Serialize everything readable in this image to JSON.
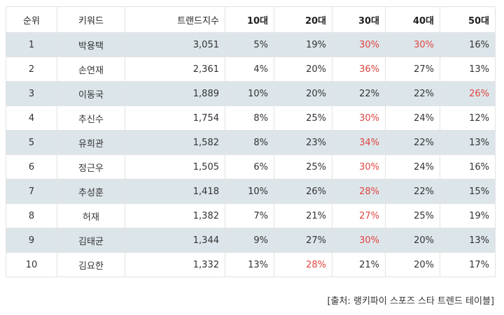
{
  "table": {
    "headers": [
      "순위",
      "키워드",
      "트랜드지수",
      "10대",
      "20대",
      "30대",
      "40대",
      "50대"
    ],
    "rows": [
      {
        "rank": "1",
        "keyword": "박용택",
        "index": "3,051",
        "a10": "5%",
        "a20": "19%",
        "a30": "30%",
        "a40": "30%",
        "a50": "16%"
      },
      {
        "rank": "2",
        "keyword": "손연재",
        "index": "2,361",
        "a10": "4%",
        "a20": "20%",
        "a30": "36%",
        "a40": "27%",
        "a50": "13%"
      },
      {
        "rank": "3",
        "keyword": "이동국",
        "index": "1,889",
        "a10": "10%",
        "a20": "20%",
        "a30": "22%",
        "a40": "22%",
        "a50": "26%"
      },
      {
        "rank": "4",
        "keyword": "추신수",
        "index": "1,754",
        "a10": "8%",
        "a20": "25%",
        "a30": "30%",
        "a40": "24%",
        "a50": "12%"
      },
      {
        "rank": "5",
        "keyword": "유희관",
        "index": "1,582",
        "a10": "8%",
        "a20": "23%",
        "a30": "34%",
        "a40": "22%",
        "a50": "13%"
      },
      {
        "rank": "6",
        "keyword": "정근우",
        "index": "1,505",
        "a10": "6%",
        "a20": "25%",
        "a30": "30%",
        "a40": "24%",
        "a50": "16%"
      },
      {
        "rank": "7",
        "keyword": "추성훈",
        "index": "1,418",
        "a10": "10%",
        "a20": "26%",
        "a30": "28%",
        "a40": "22%",
        "a50": "15%"
      },
      {
        "rank": "8",
        "keyword": "허재",
        "index": "1,382",
        "a10": "7%",
        "a20": "21%",
        "a30": "27%",
        "a40": "25%",
        "a50": "19%"
      },
      {
        "rank": "9",
        "keyword": "김태균",
        "index": "1,344",
        "a10": "9%",
        "a20": "27%",
        "a30": "30%",
        "a40": "20%",
        "a50": "13%"
      },
      {
        "rank": "10",
        "keyword": "김요한",
        "index": "1,332",
        "a10": "13%",
        "a20": "28%",
        "a30": "21%",
        "a40": "20%",
        "a50": "17%"
      }
    ]
  },
  "highlight_cells": [
    {
      "row": 0,
      "col": "a30"
    },
    {
      "row": 0,
      "col": "a40"
    },
    {
      "row": 1,
      "col": "a30"
    },
    {
      "row": 2,
      "col": "a50"
    },
    {
      "row": 3,
      "col": "a30"
    },
    {
      "row": 4,
      "col": "a30"
    },
    {
      "row": 5,
      "col": "a30"
    },
    {
      "row": 6,
      "col": "a30"
    },
    {
      "row": 7,
      "col": "a30"
    },
    {
      "row": 8,
      "col": "a30"
    },
    {
      "row": 9,
      "col": "a20"
    }
  ],
  "colors": {
    "highlight": "#e0453f",
    "shaded_row": "#dce5ea",
    "border": "#e3e3e3"
  },
  "source": "[출처: 랭키파이 스포즈 스타 트렌드 테이블]"
}
